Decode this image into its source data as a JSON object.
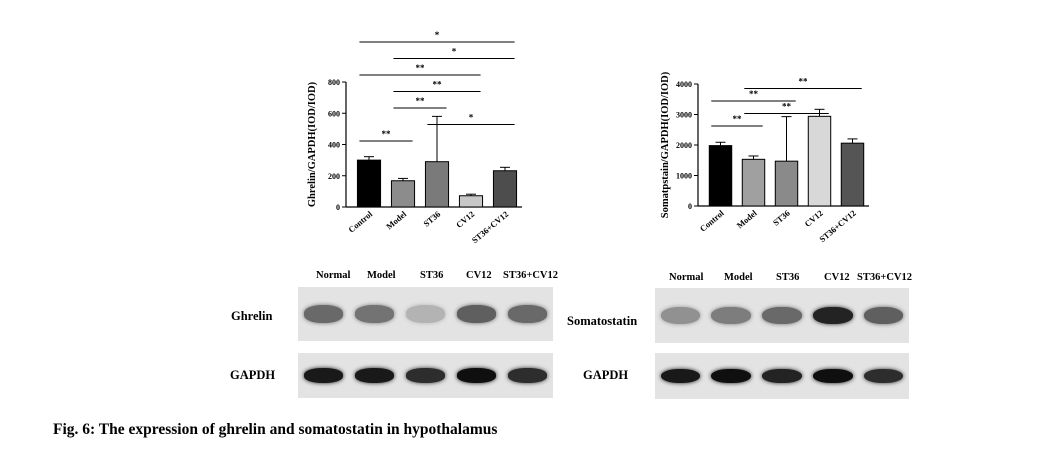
{
  "chart_data": [
    {
      "type": "bar",
      "ylabel": "Ghrelin/GAPDH(IOD/IOD)",
      "categories": [
        "Control",
        "Model",
        "ST36",
        "CV12",
        "ST36+CV12"
      ],
      "values": [
        300,
        168,
        290,
        72,
        232
      ],
      "errors": [
        22,
        15,
        290,
        10,
        22
      ],
      "ylim": [
        0,
        800
      ],
      "yticks": [
        "0",
        "200",
        "400",
        "600",
        "800"
      ],
      "colors": [
        "#000000",
        "#8c8c8c",
        "#7a7a7a",
        "#c8c8c8",
        "#4d4d4d"
      ],
      "significance": [
        {
          "from": 0,
          "to": 1,
          "label": "**"
        },
        {
          "from": 2,
          "to": 4,
          "label": "*"
        },
        {
          "from": 1,
          "to": 2,
          "label": "**"
        },
        {
          "from": 1,
          "to": 3,
          "label": "**"
        },
        {
          "from": 0,
          "to": 3,
          "label": "**"
        },
        {
          "from": 1,
          "to": 4,
          "label": "*"
        },
        {
          "from": 0,
          "to": 4,
          "label": "*"
        }
      ]
    },
    {
      "type": "bar",
      "ylabel": "Somatpstain/GAPDH(IOD/IOD)",
      "categories": [
        "Control",
        "Model",
        "ST36",
        "CV12",
        "ST36+CV12"
      ],
      "values": [
        1980,
        1530,
        1470,
        2940,
        2060
      ],
      "errors": [
        110,
        110,
        1460,
        230,
        140
      ],
      "ylim": [
        0,
        4000
      ],
      "yticks": [
        "0",
        "1000",
        "2000",
        "3000",
        "4000"
      ],
      "colors": [
        "#000000",
        "#a0a0a0",
        "#8a8a8a",
        "#d8d8d8",
        "#555555"
      ],
      "significance": [
        {
          "from": 0,
          "to": 1,
          "label": "**"
        },
        {
          "from": 1,
          "to": 3,
          "label": "**"
        },
        {
          "from": 0,
          "to": 2,
          "label": "**"
        },
        {
          "from": 1,
          "to": 4,
          "label": "**"
        }
      ]
    }
  ],
  "blots": [
    {
      "lanes": [
        "Normal",
        "Model",
        "ST36",
        "CV12",
        "ST36+CV12"
      ],
      "rows": [
        {
          "label": "Ghrelin",
          "intensity": [
            0.55,
            0.5,
            0.18,
            0.6,
            0.55
          ]
        },
        {
          "label": "GAPDH",
          "intensity": [
            0.95,
            0.95,
            0.85,
            1.0,
            0.85
          ]
        }
      ]
    },
    {
      "lanes": [
        "Normal",
        "Model",
        "ST36",
        "CV12",
        "ST36+CV12"
      ],
      "rows": [
        {
          "label": "Somatostatin",
          "intensity": [
            0.35,
            0.45,
            0.55,
            0.9,
            0.6
          ]
        },
        {
          "label": "GAPDH",
          "intensity": [
            0.95,
            1.0,
            0.9,
            1.0,
            0.85
          ]
        }
      ]
    }
  ],
  "caption": "Fig. 6: The expression of ghrelin and somatostatin in hypothalamus"
}
